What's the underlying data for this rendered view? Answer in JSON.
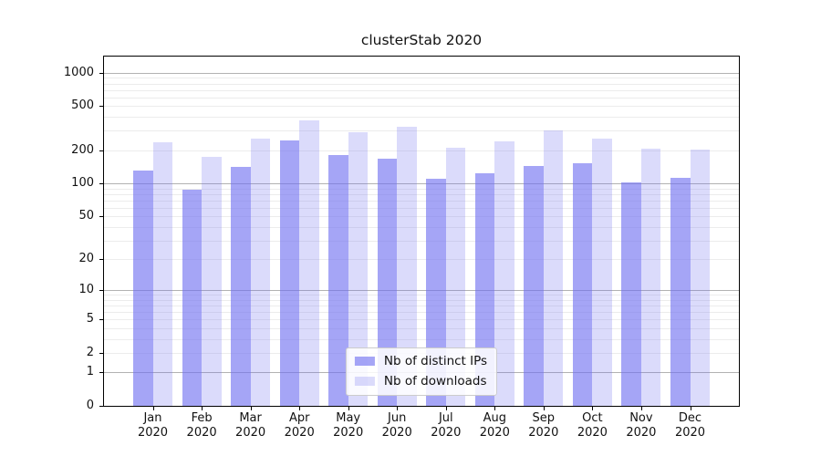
{
  "title": "clusterStab 2020",
  "legend": {
    "position": "lower center",
    "items": [
      {
        "label": "Nb of distinct IPs",
        "color": "rgba(110,110,240,0.62)"
      },
      {
        "label": "Nb of downloads",
        "color": "rgba(110,110,240,0.25)"
      }
    ]
  },
  "colors": {
    "bar_distinct_ips": "rgba(110,110,240,0.62)",
    "bar_downloads": "rgba(110,110,240,0.25)",
    "grid_major": "#b2b2b2",
    "grid_minor": "#ececec",
    "spine": "#000000",
    "text": "#111111",
    "legend_border": "#cccccc",
    "legend_background": "rgba(255,255,255,0.85)"
  },
  "axes": {
    "y_tick_labels": [
      "0",
      "1",
      "2",
      "5",
      "10",
      "20",
      "50",
      "100",
      "200",
      "500",
      "1000"
    ],
    "y_tick_values": [
      0,
      1,
      2,
      5,
      10,
      20,
      50,
      100,
      200,
      500,
      1000
    ],
    "grid_major_values": [
      1,
      10,
      100,
      1000
    ],
    "grid_minor_values": [
      2,
      3,
      4,
      5,
      6,
      7,
      8,
      9,
      20,
      30,
      40,
      50,
      60,
      70,
      80,
      90,
      200,
      300,
      400,
      500,
      600,
      700,
      800,
      900
    ]
  },
  "chart_data": {
    "type": "bar",
    "title": "clusterStab 2020",
    "categories": [
      "Jan 2020",
      "Feb 2020",
      "Mar 2020",
      "Apr 2020",
      "May 2020",
      "Jun 2020",
      "Jul 2020",
      "Aug 2020",
      "Sep 2020",
      "Oct 2020",
      "Nov 2020",
      "Dec 2020"
    ],
    "series": [
      {
        "name": "Nb of distinct IPs",
        "values": [
          130,
          88,
          140,
          245,
          180,
          167,
          110,
          123,
          143,
          152,
          102,
          112
        ]
      },
      {
        "name": "Nb of downloads",
        "values": [
          235,
          175,
          255,
          370,
          290,
          325,
          212,
          240,
          300,
          255,
          205,
          203
        ]
      }
    ],
    "yscale": "symlog",
    "ylim": [
      0,
      1400
    ],
    "y_ticks": [
      0,
      1,
      2,
      5,
      10,
      20,
      50,
      100,
      200,
      500,
      1000
    ],
    "xlabel": "",
    "ylabel": "",
    "grid": true,
    "legend_position": "lower center"
  }
}
